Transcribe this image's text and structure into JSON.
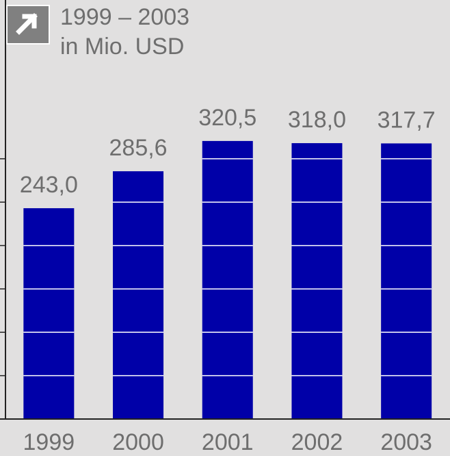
{
  "chart_data": {
    "type": "bar",
    "title": "1999 – 2003",
    "subtitle": "in Mio. USD",
    "categories": [
      "1999",
      "2000",
      "2001",
      "2002",
      "2003"
    ],
    "values": [
      243.0,
      285.6,
      320.5,
      318.0,
      317.7
    ],
    "value_labels": [
      "243,0",
      "285,6",
      "320,5",
      "318,0",
      "317,7"
    ],
    "color": "#0000a8",
    "ylim": [
      0,
      483
    ],
    "yticks": [
      0,
      50,
      100,
      150,
      200,
      250,
      300
    ],
    "grid": true
  }
}
